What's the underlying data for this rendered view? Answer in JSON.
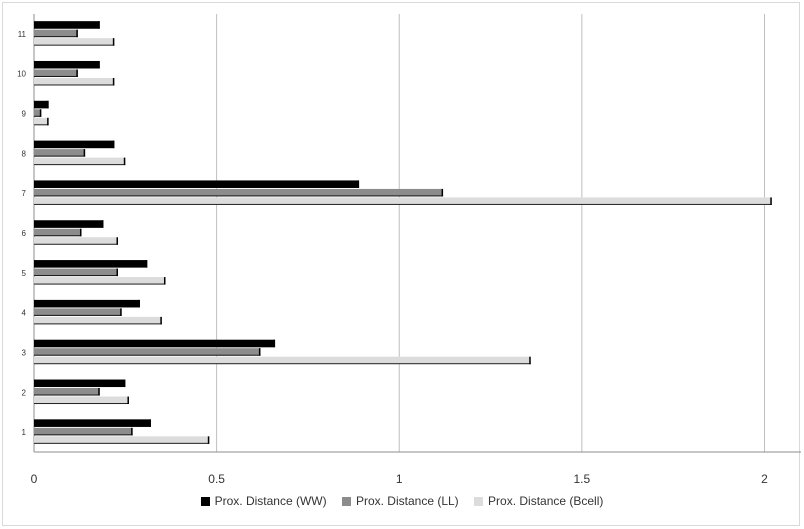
{
  "chart_data": {
    "type": "bar",
    "orientation": "horizontal",
    "categories": [
      "1",
      "2",
      "3",
      "4",
      "5",
      "6",
      "7",
      "8",
      "9",
      "10",
      "11"
    ],
    "series": [
      {
        "name": "Prox. Distance (WW)",
        "color": "#000000",
        "values": [
          0.32,
          0.25,
          0.66,
          0.29,
          0.31,
          0.19,
          0.89,
          0.22,
          0.04,
          0.18,
          0.18
        ]
      },
      {
        "name": "Prox. Distance (LL)",
        "color": "#8c8c8c",
        "values": [
          0.27,
          0.18,
          0.62,
          0.24,
          0.23,
          0.13,
          1.12,
          0.14,
          0.02,
          0.12,
          0.12
        ]
      },
      {
        "name": "Prox. Distance (Bcell)",
        "color": "#dcdcdc",
        "values": [
          0.48,
          0.26,
          1.36,
          0.35,
          0.36,
          0.23,
          2.02,
          0.25,
          0.04,
          0.22,
          0.22
        ]
      }
    ],
    "xticks": [
      "0",
      "0.5",
      "1",
      "1.5",
      "2"
    ],
    "xlim": [
      0,
      2.1
    ],
    "grid": true,
    "legend": "bottom"
  }
}
